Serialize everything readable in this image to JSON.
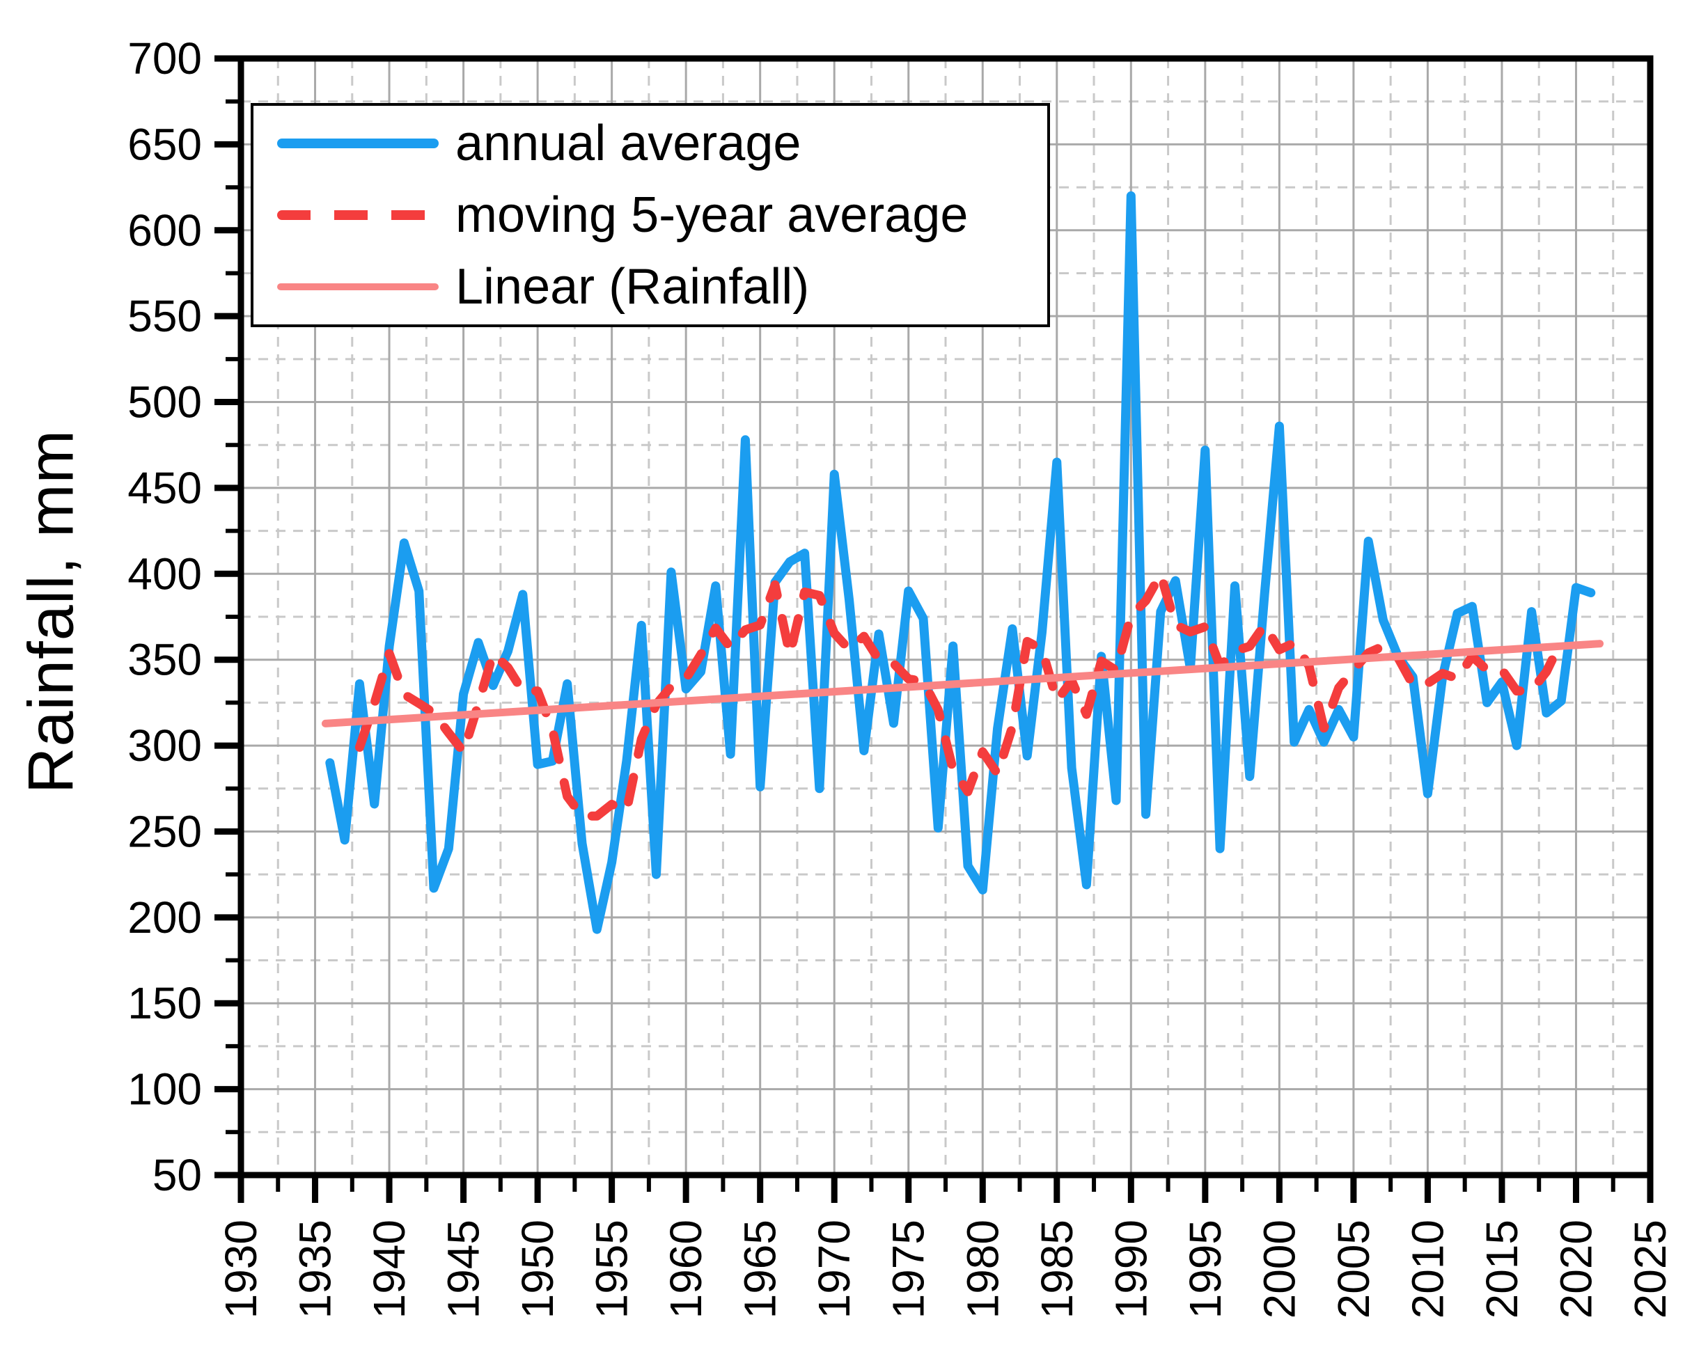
{
  "figure": {
    "background": "#ffffff",
    "y_axis": {
      "label": "Rainfall, mm",
      "min": 50,
      "max": 700,
      "major_step": 50,
      "minor_step": 25,
      "tick_labels": [
        "50",
        "100",
        "150",
        "200",
        "250",
        "300",
        "350",
        "400",
        "450",
        "500",
        "550",
        "600",
        "650",
        "700"
      ]
    },
    "x_axis": {
      "label": "",
      "min": 1930,
      "max": 2025,
      "major_step": 5,
      "minor_step": 2.5,
      "tick_labels": [
        "1930",
        "1935",
        "1940",
        "1945",
        "1950",
        "1955",
        "1960",
        "1965",
        "1970",
        "1975",
        "1980",
        "1985",
        "1990",
        "1995",
        "2000",
        "2005",
        "2010",
        "2015",
        "2020",
        "2025"
      ]
    },
    "colors": {
      "annual": "#1b9df0",
      "moving_average": "#f43d3d",
      "trend": "#f98585",
      "grid_major": "#a9a9a9",
      "grid_minor": "#c9c9c9",
      "axis": "#000000",
      "text": "#000000"
    },
    "legend": {
      "position": "upper-left",
      "items": [
        {
          "label": "annual average",
          "style": "solid",
          "color": "#1b9df0"
        },
        {
          "label": "moving 5-year average",
          "style": "dashed",
          "color": "#f43d3d"
        },
        {
          "label": "Linear (Rainfall)",
          "style": "solid-thin",
          "color": "#f98585"
        }
      ]
    }
  },
  "chart_data": {
    "type": "line",
    "title": "",
    "xlabel": "",
    "ylabel": "Rainfall, mm",
    "xlim": [
      1930,
      2025
    ],
    "ylim": [
      50,
      700
    ],
    "grid": "major solid, minor dashed",
    "legend_position": "upper-left",
    "start_year": 1936,
    "end_year": 2021,
    "series": [
      {
        "name": "annual average",
        "color": "#1b9df0",
        "style": "solid",
        "x": [
          1936,
          1937,
          1938,
          1939,
          1940,
          1941,
          1942,
          1943,
          1944,
          1945,
          1946,
          1947,
          1948,
          1949,
          1950,
          1951,
          1952,
          1953,
          1954,
          1955,
          1956,
          1957,
          1958,
          1959,
          1960,
          1961,
          1962,
          1963,
          1964,
          1965,
          1966,
          1967,
          1968,
          1969,
          1970,
          1971,
          1972,
          1973,
          1974,
          1975,
          1976,
          1977,
          1978,
          1979,
          1980,
          1981,
          1982,
          1983,
          1984,
          1985,
          1986,
          1987,
          1988,
          1989,
          1990,
          1991,
          1992,
          1993,
          1994,
          1995,
          1996,
          1997,
          1998,
          1999,
          2000,
          2001,
          2002,
          2003,
          2004,
          2005,
          2006,
          2007,
          2008,
          2009,
          2010,
          2011,
          2012,
          2013,
          2014,
          2015,
          2016,
          2017,
          2018,
          2019,
          2020,
          2021
        ],
        "values": [
          290,
          245,
          336,
          266,
          358,
          418,
          390,
          217,
          240,
          330,
          360,
          335,
          355,
          388,
          289,
          291,
          336,
          243,
          193,
          232,
          291,
          370,
          225,
          401,
          333,
          343,
          393,
          295,
          478,
          276,
          395,
          407,
          412,
          275,
          458,
          385,
          297,
          365,
          313,
          390,
          374,
          252,
          358,
          230,
          216,
          310,
          368,
          294,
          366,
          465,
          287,
          219,
          352,
          268,
          620,
          260,
          378,
          396,
          345,
          472,
          240,
          393,
          282,
          388,
          486,
          302,
          321,
          302,
          321,
          305,
          419,
          373,
          352,
          340,
          272,
          340,
          377,
          381,
          325,
          337,
          300,
          378,
          319,
          326,
          392,
          389
        ]
      },
      {
        "name": "moving 5-year average",
        "color": "#f43d3d",
        "style": "dashed",
        "derivation": "centered 5-year moving average of annual average, plotted 1938-2019"
      },
      {
        "name": "Linear (Rainfall)",
        "color": "#f98585",
        "style": "solid",
        "points": [
          {
            "year": 1936,
            "value": 313
          },
          {
            "year": 2021,
            "value": 359
          }
        ]
      }
    ]
  }
}
